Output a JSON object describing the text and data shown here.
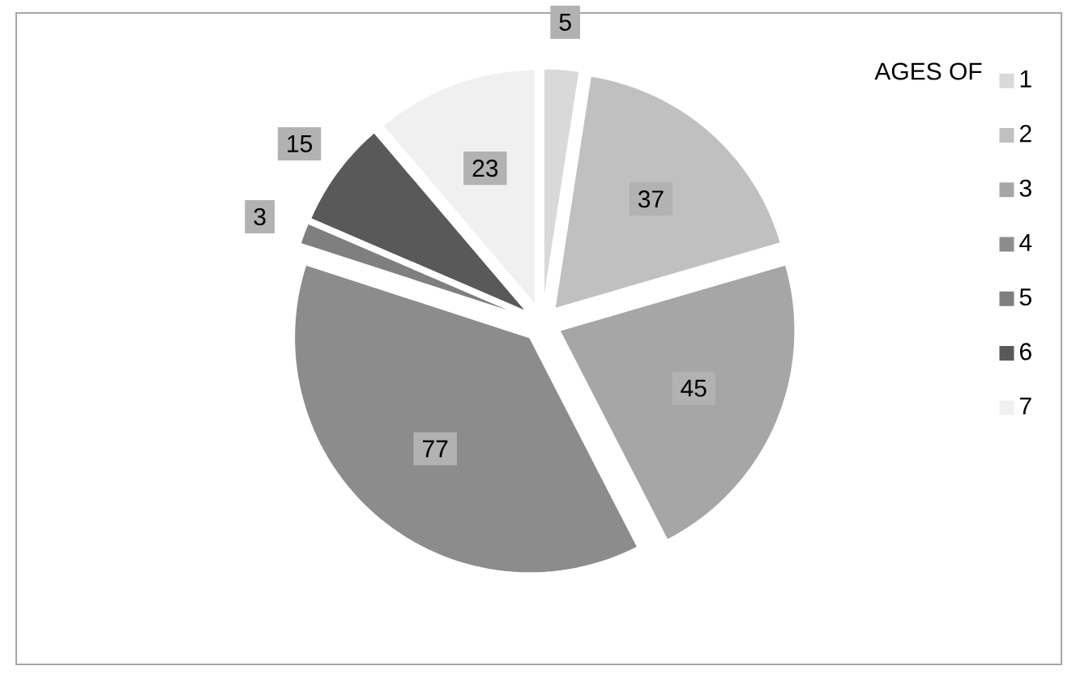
{
  "chart_data": {
    "type": "pie",
    "title": "AGES  OF",
    "categories": [
      "1",
      "2",
      "3",
      "4",
      "5",
      "6",
      "7"
    ],
    "values": [
      5,
      37,
      45,
      77,
      3,
      15,
      23
    ],
    "colors": [
      "#d9d9d9",
      "#c0c0c0",
      "#a6a6a6",
      "#8c8c8c",
      "#7f7f7f",
      "#595959",
      "#f0f0f0"
    ],
    "data_labels": true,
    "legend": "right"
  }
}
